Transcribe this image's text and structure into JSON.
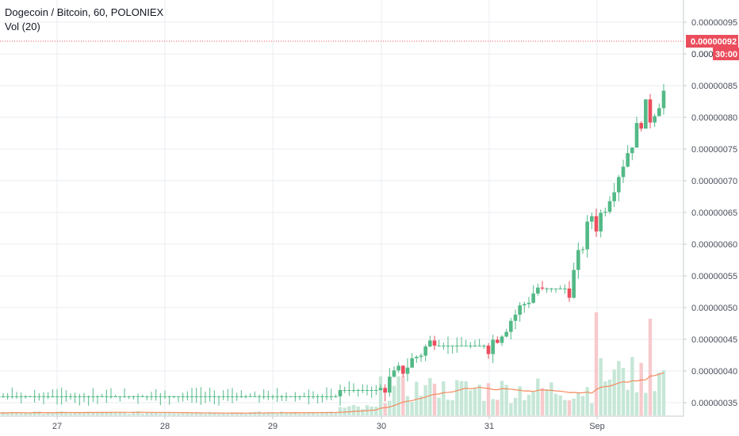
{
  "header": {
    "title": "Dogecoin / Bitcoin, 60, POLONIEX",
    "volume_indicator": "Vol (20)"
  },
  "price_axis": {
    "ticks": [
      "0.00000095",
      "0.00000090",
      "0.00000085",
      "0.00000080",
      "0.00000075",
      "0.00000070",
      "0.00000065",
      "0.00000060",
      "0.00000055",
      "0.00000050",
      "0.00000045",
      "0.00000040",
      "0.00000035"
    ],
    "current_price_label": "0.00000092",
    "countdown_label": "30:00",
    "partial_label": "0.000"
  },
  "time_axis": {
    "ticks": [
      "27",
      "28",
      "29",
      "30",
      "31",
      "Sep"
    ]
  },
  "colors": {
    "up": "#53b987",
    "down": "#eb4d5c",
    "vol_up": "#c6e7d7",
    "vol_down": "#f7c9cc",
    "ma_line": "#f58a5c",
    "grid": "#e9ecf1",
    "price_line": "#eb4d5c",
    "tag": "#eb4d5c"
  },
  "chart_data": {
    "type": "candlestick",
    "title": "Dogecoin / Bitcoin, 60, POLONIEX",
    "symbol": "Dogecoin / Bitcoin",
    "interval": "60",
    "exchange": "POLONIEX",
    "y_unit": "BTC",
    "ylim": [
      3.2e-07,
      9.7e-07
    ],
    "x_tick_labels": [
      "27",
      "28",
      "29",
      "30",
      "31",
      "Sep"
    ],
    "last_price": 9.2e-07,
    "volume_ma_period": 20,
    "grid": true,
    "series": [
      {
        "name": "price",
        "phases": [
          {
            "from": "26",
            "to": "29 15:00",
            "level": 3.6e-07,
            "trend": "flat"
          },
          {
            "from": "29 15:00",
            "to": "30",
            "level": 3.7e-07,
            "trend": "flat"
          },
          {
            "from": "30",
            "to": "30 12:00",
            "start": 3.7e-07,
            "end": 4.5e-07,
            "trend": "up"
          },
          {
            "from": "30 12:00",
            "to": "31",
            "level": 4.4e-07,
            "trend": "flat"
          },
          {
            "from": "31",
            "to": "31 12:00",
            "start": 4.4e-07,
            "end": 5.4e-07,
            "trend": "up"
          },
          {
            "from": "31 12:00",
            "to": "31 18:00",
            "level": 5.3e-07,
            "trend": "flat"
          },
          {
            "from": "31 18:00",
            "to": "Sep 1",
            "start": 5.3e-07,
            "end": 6.7e-07,
            "trend": "up"
          },
          {
            "from": "Sep 1",
            "to": "Sep 1 12:00",
            "start": 6.3e-07,
            "end": 8.3e-07,
            "trend": "up"
          },
          {
            "from": "Sep 1 12:00",
            "to": "Sep 1 21:00",
            "start": 8e-07,
            "end": 9.2e-07,
            "trend": "up"
          }
        ]
      },
      {
        "name": "volume",
        "spike_dates": [
          "Aug 31 03:00",
          "Sep 1 00:00",
          "Sep 1 10:00",
          "Sep 1 20:00"
        ]
      }
    ]
  }
}
